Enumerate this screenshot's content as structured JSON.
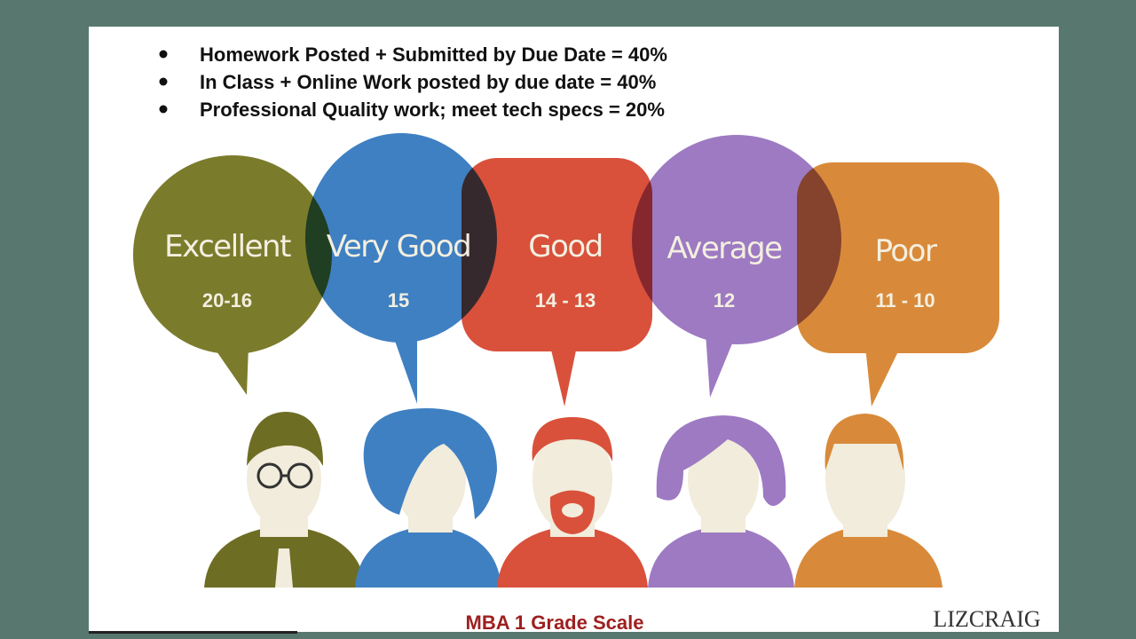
{
  "bullets": [
    "Homework Posted + Submitted by Due Date = 40%",
    "In Class + Online Work posted by due date  = 40%",
    "Professional Quality work; meet tech specs  = 20%"
  ],
  "grades": [
    {
      "label": "Excellent",
      "range": "20-16"
    },
    {
      "label": "Very Good",
      "range": "15"
    },
    {
      "label": "Good",
      "range": "14 - 13"
    },
    {
      "label": "Average",
      "range": "12"
    },
    {
      "label": "Poor",
      "range": "11 - 10"
    }
  ],
  "footer": {
    "title": "MBA 1 Grade Scale",
    "logo": "LIZCRAIG"
  }
}
